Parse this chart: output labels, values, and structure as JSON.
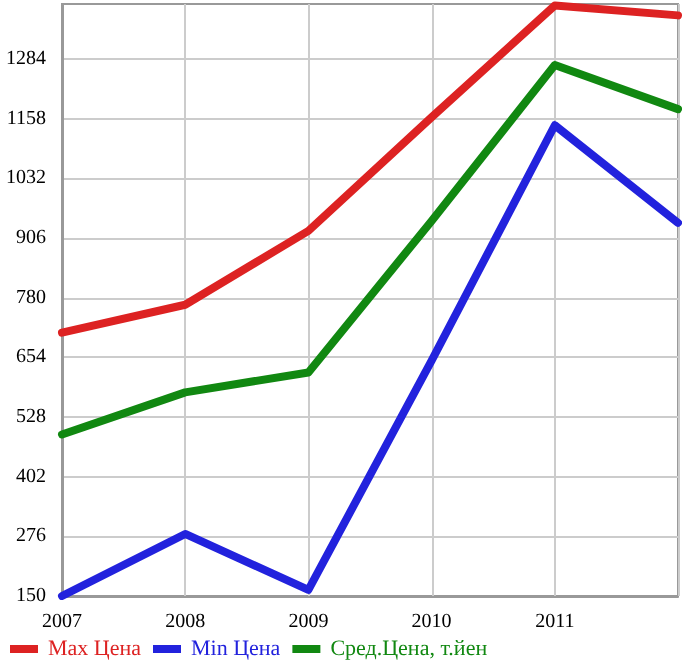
{
  "chart_data": {
    "type": "line",
    "categories": [
      "2007",
      "2008",
      "2009",
      "2010",
      "2011",
      null
    ],
    "series": [
      {
        "name": "Max Цена",
        "color": "#dd2222",
        "values": [
          706,
          765,
          921,
          1161,
          1397,
          1376
        ]
      },
      {
        "name": "Min Цена",
        "color": "#2222dd",
        "values": [
          150,
          281,
          163,
          647,
          1144,
          938
        ]
      },
      {
        "name": "Сред.Цена, т.йен",
        "color": "#118811",
        "values": [
          491,
          580,
          622,
          942,
          1271,
          1178
        ]
      }
    ],
    "ylim": [
      150,
      1400
    ],
    "yticks": [
      150,
      276,
      402,
      528,
      654,
      780,
      906,
      1032,
      1158,
      1284
    ],
    "grid": true,
    "legend": "bottom",
    "marker": "none",
    "line_style": "solid"
  }
}
